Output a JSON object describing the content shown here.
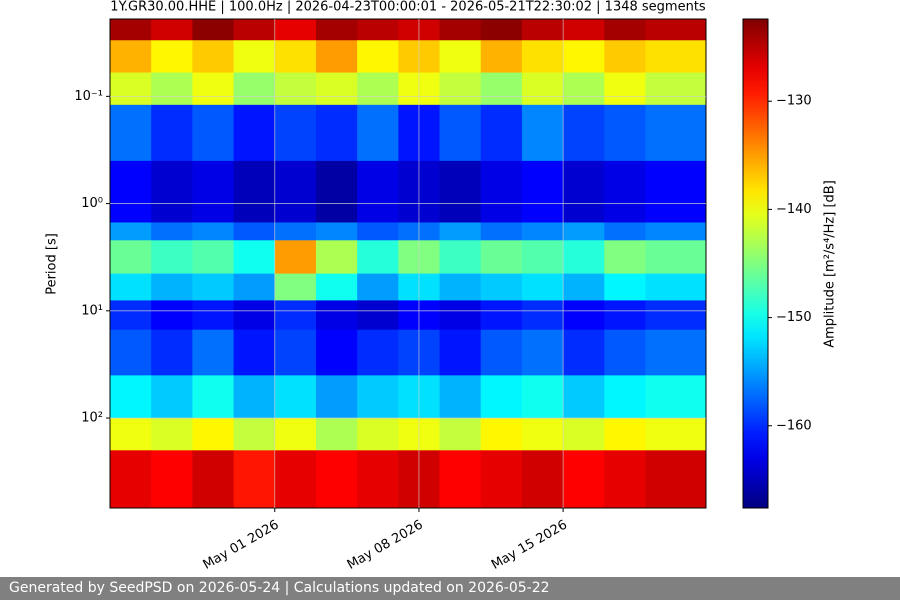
{
  "chart_data": {
    "type": "spectrogram",
    "title": "1Y.GR30.00.HHE | 100.0Hz | 2026-04-23T00:00:01 - 2026-05-21T22:30:02 | 1348 segments",
    "ylabel": "Period [s]",
    "colorbar_label": "Amplitude [m²/s⁴/Hz] [dB]",
    "yscale": "log",
    "y_inverted": true,
    "grid": true,
    "colormap": "jet",
    "xlim": [
      "2026-04-23T00:00:01",
      "2026-05-21T22:30:02"
    ],
    "xticks": [
      {
        "value": "2026-05-01",
        "label": "May 01 2026"
      },
      {
        "value": "2026-05-08",
        "label": "May 08 2026"
      },
      {
        "value": "2026-05-15",
        "label": "May 15 2026"
      }
    ],
    "ylim": [
      0.019,
      690
    ],
    "yticks": [
      {
        "value": 0.1,
        "label": "10⁻¹"
      },
      {
        "value": 1,
        "label": "10⁰"
      },
      {
        "value": 10,
        "label": "10¹"
      },
      {
        "value": 100,
        "label": "10²"
      }
    ],
    "zlim": [
      -167.6,
      -122.4
    ],
    "zticks": [
      {
        "value": -130,
        "label": "−130"
      },
      {
        "value": -140,
        "label": "−140"
      },
      {
        "value": -150,
        "label": "−150"
      },
      {
        "value": -160,
        "label": "−160"
      }
    ],
    "x_edges": [
      "2026-04-23T00:00:01",
      "2026-04-25",
      "2026-04-27",
      "2026-04-29",
      "2026-05-01",
      "2026-05-03",
      "2026-05-05",
      "2026-05-07",
      "2026-05-09",
      "2026-05-11",
      "2026-05-13",
      "2026-05-15",
      "2026-05-17",
      "2026-05-19",
      "2026-05-21T22:30:02"
    ],
    "period_edges": [
      0.019,
      0.03,
      0.06,
      0.12,
      0.4,
      1.5,
      2.2,
      4.5,
      8,
      15,
      40,
      100,
      200,
      690
    ],
    "z": [
      [
        -124,
        -126,
        -123,
        -125,
        -127,
        -124,
        -125,
        -126,
        -124,
        -123,
        -125,
        -126,
        -124,
        -125
      ],
      [
        -136,
        -139,
        -137,
        -140,
        -138,
        -135,
        -139,
        -137,
        -140,
        -136,
        -138,
        -139,
        -137,
        -138
      ],
      [
        -141,
        -143,
        -140,
        -144,
        -142,
        -141,
        -143,
        -140,
        -142,
        -144,
        -141,
        -143,
        -140,
        -142
      ],
      [
        -157,
        -160,
        -158,
        -161,
        -159,
        -160,
        -157,
        -161,
        -158,
        -160,
        -156,
        -159,
        -158,
        -157
      ],
      [
        -162,
        -164,
        -163,
        -165,
        -164,
        -166,
        -163,
        -164,
        -165,
        -163,
        -162,
        -164,
        -163,
        -162
      ],
      [
        -155,
        -157,
        -156,
        -158,
        -157,
        -156,
        -158,
        -157,
        -155,
        -157,
        -156,
        -155,
        -157,
        -156
      ],
      [
        -146,
        -148,
        -147,
        -150,
        -135,
        -143,
        -149,
        -145,
        -148,
        -146,
        -147,
        -149,
        -145,
        -146
      ],
      [
        -152,
        -154,
        -153,
        -155,
        -145,
        -150,
        -155,
        -152,
        -154,
        -153,
        -152,
        -154,
        -151,
        -152
      ],
      [
        -160,
        -162,
        -161,
        -163,
        -160,
        -163,
        -164,
        -162,
        -163,
        -161,
        -160,
        -162,
        -161,
        -160
      ],
      [
        -158,
        -160,
        -157,
        -161,
        -159,
        -162,
        -160,
        -159,
        -161,
        -158,
        -157,
        -160,
        -158,
        -157
      ],
      [
        -151,
        -153,
        -150,
        -154,
        -152,
        -155,
        -153,
        -152,
        -154,
        -151,
        -150,
        -153,
        -151,
        -150
      ],
      [
        -140,
        -141,
        -139,
        -142,
        -140,
        -143,
        -141,
        -140,
        -142,
        -139,
        -140,
        -141,
        -139,
        -140
      ],
      [
        -127,
        -128,
        -126,
        -129,
        -127,
        -128,
        -127,
        -126,
        -128,
        -127,
        -126,
        -128,
        -127,
        -126
      ]
    ]
  },
  "footer": "Generated by SeedPSD on 2026-05-24 | Calculations updated on 2026-05-22"
}
